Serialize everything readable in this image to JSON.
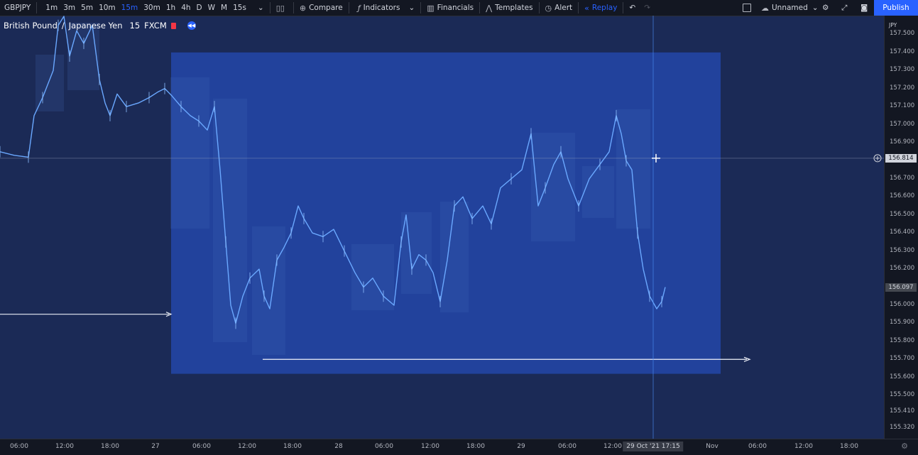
{
  "toolbar": {
    "symbol": "GBPJPY",
    "intervals": [
      "1m",
      "3m",
      "5m",
      "10m",
      "15m",
      "30m",
      "1h",
      "4h",
      "D",
      "W",
      "M",
      "15s"
    ],
    "active_interval": "15m",
    "compare": "Compare",
    "indicators": "Indicators",
    "financials": "Financials",
    "templates": "Templates",
    "alert": "Alert",
    "replay": "Replay",
    "layout_name": "Unnamed",
    "publish": "Publish"
  },
  "legend": {
    "base": "British Pound",
    "slash": "/",
    "quote": "Japanese Yen",
    "interval": "15",
    "source": "FXCM"
  },
  "price_axis": {
    "currency": "JPY",
    "labels": [
      "157.500",
      "157.400",
      "157.300",
      "157.200",
      "157.100",
      "157.000",
      "156.900",
      "156.814",
      "156.700",
      "156.600",
      "156.500",
      "156.400",
      "156.300",
      "156.200",
      "156.097",
      "156.000",
      "155.900",
      "155.800",
      "155.700",
      "155.600",
      "155.500",
      "155.410",
      "155.320"
    ],
    "crosshair_price": "156.814",
    "last_price": "156.097"
  },
  "time_axis": {
    "labels": [
      "06:00",
      "12:00",
      "18:00",
      "27",
      "06:00",
      "12:00",
      "18:00",
      "28",
      "06:00",
      "12:00",
      "18:00",
      "29",
      "06:00",
      "12:00",
      "Nov",
      "06:00",
      "12:00",
      "18:00"
    ],
    "crosshair_time": "29 Oct '21  17:15"
  },
  "colors": {
    "background": "#1b2a56",
    "range_box": "#2346a8",
    "price_line": "#6aa8ff",
    "accent": "#2962ff"
  },
  "chart_data": {
    "type": "line",
    "series_points": [
      [
        0,
        156.85
      ],
      [
        20,
        156.83
      ],
      [
        40,
        156.82
      ],
      [
        48,
        157.05
      ],
      [
        60,
        157.15
      ],
      [
        75,
        157.3
      ],
      [
        82,
        157.55
      ],
      [
        90,
        157.6
      ],
      [
        98,
        157.38
      ],
      [
        108,
        157.52
      ],
      [
        118,
        157.45
      ],
      [
        130,
        157.55
      ],
      [
        140,
        157.25
      ],
      [
        148,
        157.12
      ],
      [
        155,
        157.05
      ],
      [
        165,
        157.17
      ],
      [
        178,
        157.1
      ],
      [
        195,
        157.12
      ],
      [
        210,
        157.15
      ],
      [
        222,
        157.18
      ],
      [
        232,
        157.2
      ],
      [
        242,
        157.16
      ],
      [
        255,
        157.1
      ],
      [
        268,
        157.05
      ],
      [
        280,
        157.02
      ],
      [
        292,
        156.97
      ],
      [
        302,
        157.1
      ],
      [
        310,
        156.75
      ],
      [
        318,
        156.35
      ],
      [
        325,
        156.0
      ],
      [
        332,
        155.9
      ],
      [
        342,
        156.05
      ],
      [
        352,
        156.15
      ],
      [
        365,
        156.2
      ],
      [
        372,
        156.05
      ],
      [
        380,
        155.98
      ],
      [
        390,
        156.25
      ],
      [
        400,
        156.32
      ],
      [
        410,
        156.4
      ],
      [
        420,
        156.55
      ],
      [
        428,
        156.48
      ],
      [
        440,
        156.4
      ],
      [
        455,
        156.38
      ],
      [
        470,
        156.42
      ],
      [
        485,
        156.3
      ],
      [
        500,
        156.18
      ],
      [
        512,
        156.1
      ],
      [
        525,
        156.15
      ],
      [
        540,
        156.05
      ],
      [
        555,
        156.0
      ],
      [
        565,
        156.35
      ],
      [
        572,
        156.5
      ],
      [
        580,
        156.2
      ],
      [
        590,
        156.28
      ],
      [
        600,
        156.25
      ],
      [
        610,
        156.18
      ],
      [
        620,
        156.02
      ],
      [
        630,
        156.25
      ],
      [
        640,
        156.55
      ],
      [
        652,
        156.6
      ],
      [
        665,
        156.48
      ],
      [
        680,
        156.55
      ],
      [
        692,
        156.45
      ],
      [
        705,
        156.65
      ],
      [
        720,
        156.7
      ],
      [
        735,
        156.75
      ],
      [
        748,
        156.95
      ],
      [
        758,
        156.55
      ],
      [
        768,
        156.65
      ],
      [
        780,
        156.78
      ],
      [
        790,
        156.85
      ],
      [
        800,
        156.7
      ],
      [
        815,
        156.55
      ],
      [
        830,
        156.7
      ],
      [
        845,
        156.78
      ],
      [
        858,
        156.85
      ],
      [
        868,
        157.05
      ],
      [
        875,
        156.95
      ],
      [
        882,
        156.8
      ],
      [
        890,
        156.75
      ],
      [
        898,
        156.4
      ],
      [
        906,
        156.2
      ],
      [
        915,
        156.05
      ],
      [
        925,
        155.98
      ],
      [
        932,
        156.02
      ],
      [
        937,
        156.1
      ]
    ],
    "x_range": [
      0,
      1245
    ],
    "ylim": [
      155.3,
      157.6
    ],
    "range_box": {
      "price_top": 157.4,
      "price_bottom": 155.62
    },
    "horizontal_ray_price": 155.7,
    "left_arrow_price": 155.95,
    "crosshair_price": 156.814
  }
}
